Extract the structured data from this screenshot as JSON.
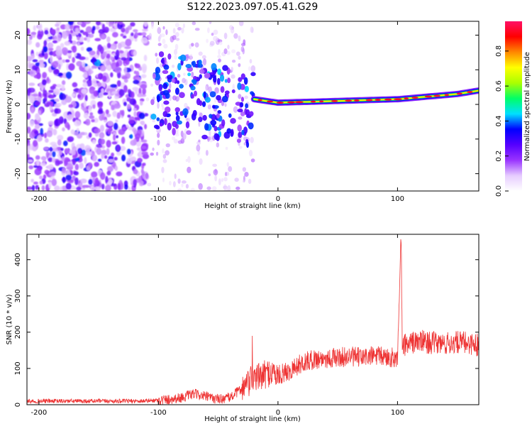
{
  "title": "S122.2023.097.05.41.G29",
  "chart_data": [
    {
      "type": "heatmap",
      "xlabel": "Height of straight line (km)",
      "ylabel": "Frequency (Hz)",
      "xlim": [
        -210,
        168
      ],
      "ylim": [
        -25,
        24
      ],
      "xticks": [
        -200,
        -100,
        0,
        100
      ],
      "xtick_labels": [
        "-200",
        "-100",
        "0",
        "100"
      ],
      "yticks": [
        -20,
        -10,
        0,
        10,
        20
      ],
      "ytick_labels": [
        "-20",
        "-10",
        "0",
        "10",
        "20"
      ],
      "colorbar": {
        "label": "Normalized spectral amplitude",
        "range": [
          0,
          0.97
        ],
        "ticks": [
          0.0,
          0.2,
          0.4,
          0.6,
          0.8
        ],
        "tick_labels": [
          "0.0",
          "0.2",
          "0.4",
          "0.6",
          "0.8"
        ],
        "colors": [
          "#ffffff",
          "#e6ccff",
          "#9933ff",
          "#5500ff",
          "#0000ff",
          "#00e0ff",
          "#00ff66",
          "#aaff00",
          "#ffff00",
          "#ff8800",
          "#ff0000",
          "#ff1166"
        ]
      },
      "ridge": {
        "description_points_km": [
          -20,
          0,
          50,
          100,
          150,
          168
        ],
        "frequency_hz": [
          1.5,
          0.5,
          1,
          1.5,
          3,
          4
        ]
      },
      "grid": false
    },
    {
      "type": "line",
      "xlabel": "Height of straight line (km)",
      "ylabel": "SNR (10 * v/v)",
      "xlim": [
        -210,
        168
      ],
      "ylim": [
        0,
        470
      ],
      "xticks": [
        -200,
        -100,
        0,
        100
      ],
      "xtick_labels": [
        "-200",
        "-100",
        "0",
        "100"
      ],
      "yticks": [
        0,
        100,
        200,
        300,
        400
      ],
      "ytick_labels": [
        "0",
        "100",
        "200",
        "300",
        "400"
      ],
      "color": "#ee3333",
      "series": [
        {
          "x": [
            -210,
            -180,
            -150,
            -120,
            -100,
            -90,
            -80,
            -70,
            -60,
            -50,
            -40,
            -30,
            -25,
            -20,
            -15,
            -10,
            -5,
            0,
            10,
            20,
            30,
            40,
            50,
            60,
            70,
            80,
            90,
            95,
            100,
            102,
            103,
            104,
            105,
            110,
            120,
            130,
            140,
            150,
            160,
            168
          ],
          "y": [
            10,
            10,
            10,
            10,
            12,
            15,
            20,
            30,
            22,
            15,
            20,
            45,
            55,
            80,
            75,
            85,
            90,
            80,
            95,
            115,
            125,
            128,
            130,
            133,
            130,
            135,
            132,
            130,
            130,
            330,
            465,
            160,
            165,
            170,
            175,
            170,
            168,
            172,
            170,
            165
          ]
        }
      ],
      "grid": false
    }
  ]
}
